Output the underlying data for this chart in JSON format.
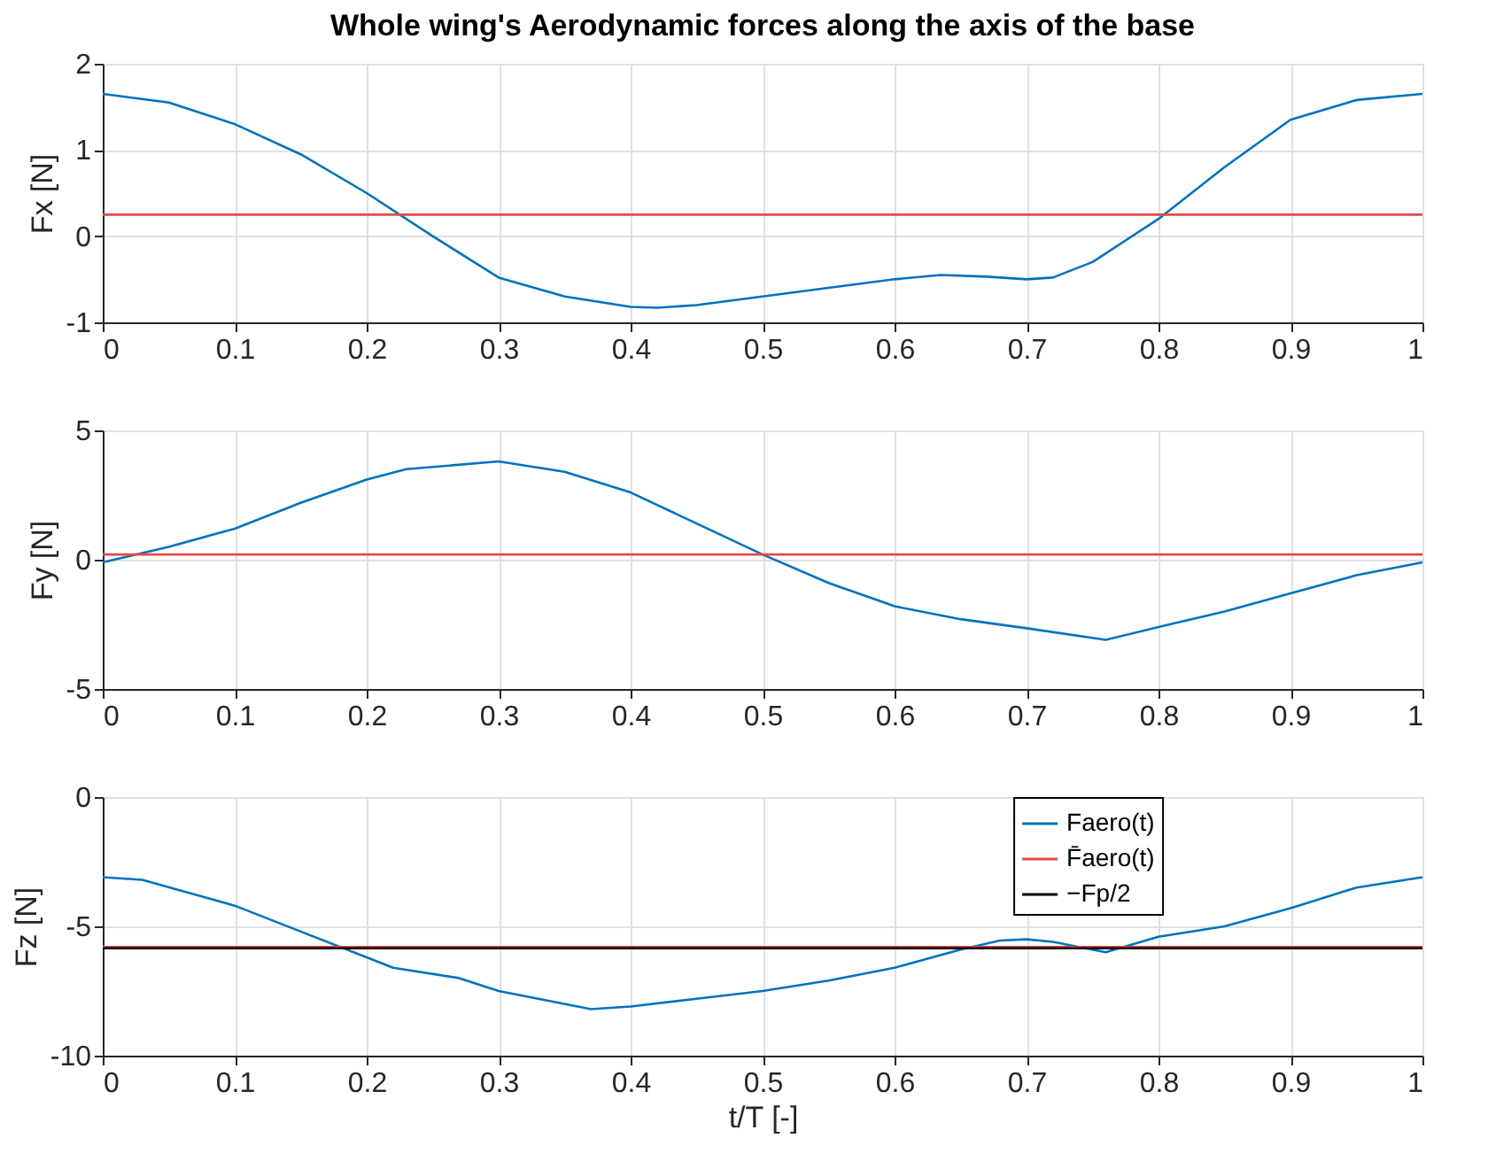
{
  "chart_data": [
    {
      "type": "line",
      "title": "Whole wing's Aerodynamic forces along the axis of the base",
      "ylabel": "Fx [N]",
      "xlim": [
        0,
        1
      ],
      "xticks": [
        0,
        0.1,
        0.2,
        0.3,
        0.4,
        0.5,
        0.6,
        0.7,
        0.8,
        0.9,
        1
      ],
      "ylim": [
        -1,
        2
      ],
      "yticks": [
        -1,
        0,
        1,
        2
      ],
      "grid": true,
      "legend": false,
      "series": [
        {
          "color": "#0072bd",
          "x": [
            0,
            0.05,
            0.1,
            0.15,
            0.2,
            0.25,
            0.3,
            0.35,
            0.4,
            0.42,
            0.45,
            0.5,
            0.55,
            0.6,
            0.635,
            0.67,
            0.7,
            0.72,
            0.75,
            0.8,
            0.85,
            0.9,
            0.95,
            1.0
          ],
          "values": [
            1.65,
            1.55,
            1.3,
            0.95,
            0.5,
            0.0,
            -0.48,
            -0.7,
            -0.82,
            -0.83,
            -0.8,
            -0.7,
            -0.6,
            -0.5,
            -0.45,
            -0.47,
            -0.5,
            -0.48,
            -0.3,
            0.2,
            0.8,
            1.35,
            1.58,
            1.65
          ]
        },
        {
          "color": "#e04a4a",
          "x": [
            0,
            1
          ],
          "values": [
            0.25,
            0.25
          ]
        }
      ]
    },
    {
      "type": "line",
      "ylabel": "Fy [N]",
      "xlim": [
        0,
        1
      ],
      "xticks": [
        0,
        0.1,
        0.2,
        0.3,
        0.4,
        0.5,
        0.6,
        0.7,
        0.8,
        0.9,
        1
      ],
      "ylim": [
        -5,
        5
      ],
      "yticks": [
        -5,
        0,
        5
      ],
      "grid": true,
      "legend": false,
      "series": [
        {
          "color": "#0072bd",
          "x": [
            0,
            0.05,
            0.1,
            0.15,
            0.2,
            0.23,
            0.3,
            0.35,
            0.4,
            0.45,
            0.5,
            0.55,
            0.6,
            0.65,
            0.7,
            0.76,
            0.8,
            0.85,
            0.9,
            0.95,
            1.0
          ],
          "values": [
            -0.1,
            0.5,
            1.2,
            2.2,
            3.1,
            3.5,
            3.8,
            3.4,
            2.6,
            1.4,
            0.2,
            -0.9,
            -1.8,
            -2.3,
            -2.65,
            -3.1,
            -2.6,
            -2.0,
            -1.3,
            -0.6,
            -0.1
          ]
        },
        {
          "color": "#e04a4a",
          "x": [
            0,
            1
          ],
          "values": [
            0.2,
            0.2
          ]
        }
      ]
    },
    {
      "type": "line",
      "xlabel": "t/T [-]",
      "ylabel": "Fz [N]",
      "xlim": [
        0,
        1
      ],
      "xticks": [
        0,
        0.1,
        0.2,
        0.3,
        0.4,
        0.5,
        0.6,
        0.7,
        0.8,
        0.9,
        1
      ],
      "ylim": [
        -10,
        0
      ],
      "yticks": [
        -10,
        -5,
        0
      ],
      "grid": true,
      "legend": "top right",
      "series": [
        {
          "name": "Faero(t)",
          "color": "#0072bd",
          "x": [
            0,
            0.03,
            0.1,
            0.15,
            0.2,
            0.22,
            0.27,
            0.3,
            0.37,
            0.4,
            0.45,
            0.5,
            0.55,
            0.6,
            0.65,
            0.68,
            0.7,
            0.72,
            0.76,
            0.8,
            0.85,
            0.9,
            0.95,
            1.0
          ],
          "values": [
            -3.1,
            -3.2,
            -4.2,
            -5.2,
            -6.2,
            -6.6,
            -7.0,
            -7.5,
            -8.2,
            -8.1,
            -7.8,
            -7.5,
            -7.1,
            -6.6,
            -5.9,
            -5.55,
            -5.5,
            -5.6,
            -6.0,
            -5.4,
            -5.0,
            -4.3,
            -3.5,
            -3.1
          ]
        },
        {
          "name": "F̄aero(t)",
          "color": "#e04a4a",
          "x": [
            0,
            1
          ],
          "values": [
            -5.8,
            -5.8
          ]
        },
        {
          "name": "−Fp/2",
          "color": "#000000",
          "x": [
            0,
            1
          ],
          "values": [
            -5.85,
            -5.85
          ]
        }
      ]
    }
  ]
}
